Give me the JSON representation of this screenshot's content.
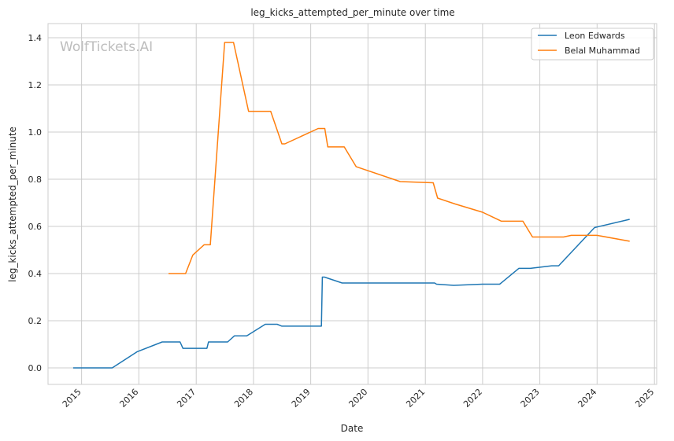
{
  "chart_data": {
    "type": "line",
    "title": "leg_kicks_attempted_per_minute over time",
    "xlabel": "Date",
    "ylabel": "leg_kicks_attempted_per_minute",
    "watermark": "WolfTickets.AI",
    "x_type": "date",
    "xlim": [
      "2014-06-01",
      "2025-01-15"
    ],
    "ylim": [
      -0.07,
      1.46
    ],
    "x_ticks": [
      "2015-01-01",
      "2016-01-01",
      "2017-01-01",
      "2018-01-01",
      "2019-01-01",
      "2020-01-01",
      "2021-01-01",
      "2022-01-01",
      "2023-01-01",
      "2024-01-01",
      "2025-01-01"
    ],
    "x_tick_labels": [
      "2015",
      "2016",
      "2017",
      "2018",
      "2019",
      "2020",
      "2021",
      "2022",
      "2023",
      "2024",
      "2025"
    ],
    "y_ticks": [
      0.0,
      0.2,
      0.4,
      0.6,
      0.8,
      1.0,
      1.2,
      1.4
    ],
    "y_tick_labels": [
      "0.0",
      "0.2",
      "0.4",
      "0.6",
      "0.8",
      "1.0",
      "1.2",
      "1.4"
    ],
    "grid": true,
    "legend_position": "top-right",
    "series": [
      {
        "name": "Leon Edwards",
        "color": "#1f77b4",
        "points": [
          [
            "2014-11-08",
            0.0
          ],
          [
            "2015-07-15",
            0.0
          ],
          [
            "2015-12-20",
            0.068
          ],
          [
            "2016-05-29",
            0.11
          ],
          [
            "2016-09-20",
            0.11
          ],
          [
            "2016-10-08",
            0.083
          ],
          [
            "2017-03-10",
            0.083
          ],
          [
            "2017-03-20",
            0.11
          ],
          [
            "2017-07-20",
            0.11
          ],
          [
            "2017-09-02",
            0.136
          ],
          [
            "2017-11-19",
            0.136
          ],
          [
            "2018-03-17",
            0.185
          ],
          [
            "2018-06-01",
            0.185
          ],
          [
            "2018-07-01",
            0.177
          ],
          [
            "2019-03-10",
            0.177
          ],
          [
            "2019-03-16",
            0.385
          ],
          [
            "2019-03-30",
            0.385
          ],
          [
            "2019-07-20",
            0.36
          ],
          [
            "2021-03-01",
            0.36
          ],
          [
            "2021-03-13",
            0.355
          ],
          [
            "2021-07-01",
            0.35
          ],
          [
            "2021-12-31",
            0.355
          ],
          [
            "2022-04-20",
            0.355
          ],
          [
            "2022-08-20",
            0.422
          ],
          [
            "2022-11-01",
            0.422
          ],
          [
            "2023-03-18",
            0.433
          ],
          [
            "2023-05-01",
            0.433
          ],
          [
            "2023-12-16",
            0.595
          ],
          [
            "2024-07-27",
            0.63
          ]
        ]
      },
      {
        "name": "Belal Muhammad",
        "color": "#ff7f0e",
        "points": [
          [
            "2016-07-08",
            0.4
          ],
          [
            "2016-10-25",
            0.4
          ],
          [
            "2016-12-10",
            0.478
          ],
          [
            "2017-02-20",
            0.522
          ],
          [
            "2017-04-01",
            0.522
          ],
          [
            "2017-07-01",
            1.38
          ],
          [
            "2017-08-27",
            1.38
          ],
          [
            "2017-12-01",
            1.088
          ],
          [
            "2018-04-21",
            1.088
          ],
          [
            "2018-07-01",
            0.95
          ],
          [
            "2018-07-20",
            0.95
          ],
          [
            "2019-02-17",
            1.015
          ],
          [
            "2019-04-01",
            1.015
          ],
          [
            "2019-04-20",
            0.937
          ],
          [
            "2019-08-03",
            0.937
          ],
          [
            "2019-10-18",
            0.853
          ],
          [
            "2020-07-25",
            0.79
          ],
          [
            "2021-02-20",
            0.785
          ],
          [
            "2021-03-20",
            0.72
          ],
          [
            "2021-07-10",
            0.695
          ],
          [
            "2022-01-01",
            0.66
          ],
          [
            "2022-05-01",
            0.622
          ],
          [
            "2022-09-15",
            0.622
          ],
          [
            "2022-11-15",
            0.555
          ],
          [
            "2023-06-01",
            0.555
          ],
          [
            "2023-07-20",
            0.562
          ],
          [
            "2024-01-01",
            0.562
          ],
          [
            "2024-07-27",
            0.537
          ]
        ]
      }
    ]
  }
}
